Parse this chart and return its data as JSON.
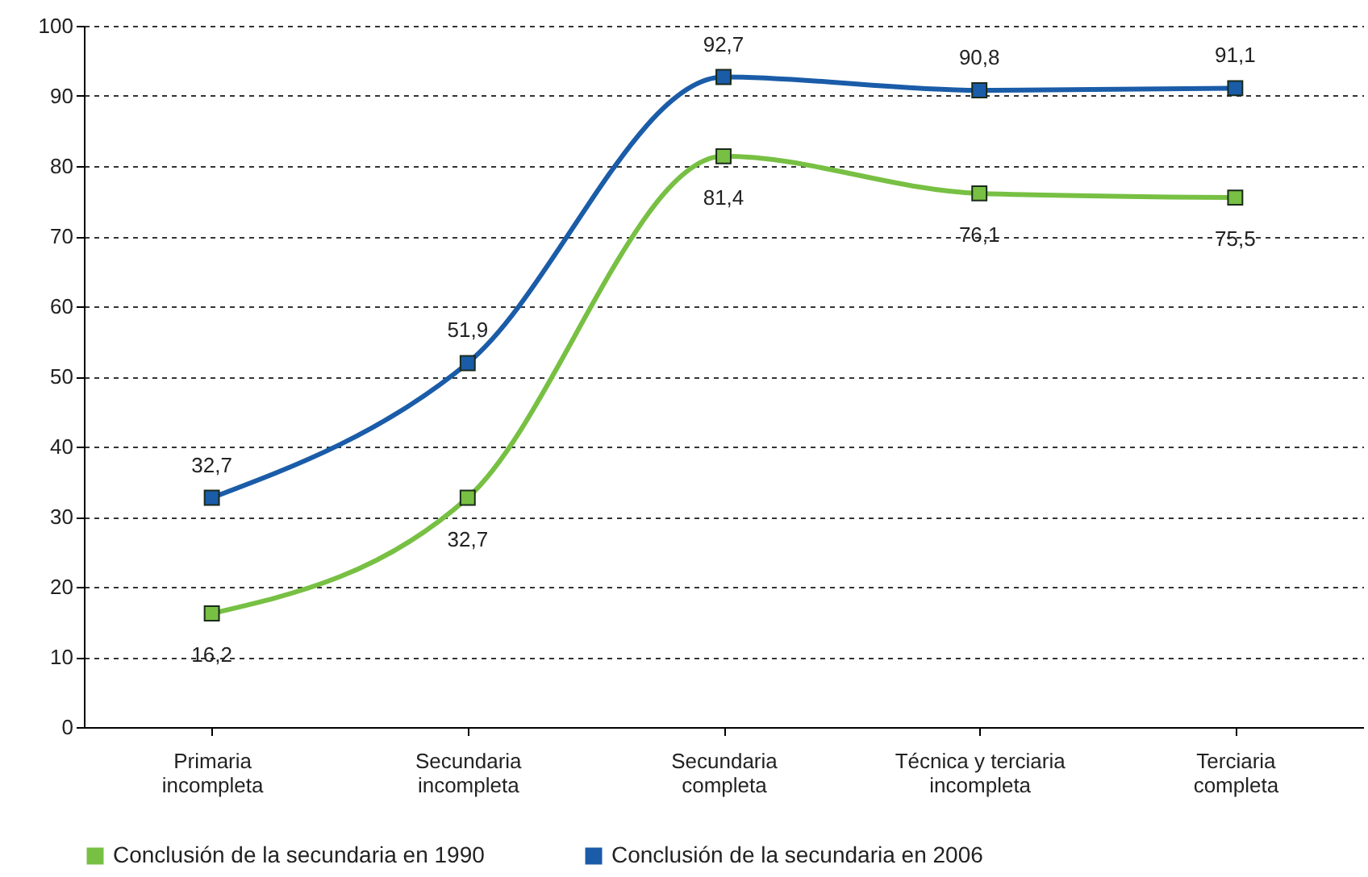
{
  "chart_data": {
    "type": "line",
    "categories": [
      "Primaria incompleta",
      "Secundaria incompleta",
      "Secundaria completa",
      "Técnica y terciaria incompleta",
      "Terciaria completa"
    ],
    "series": [
      {
        "name": "Conclusión de la secundaria en 1990",
        "color": "#77c043",
        "values": [
          16.2,
          32.7,
          81.4,
          76.1,
          75.5
        ],
        "value_labels": [
          "16,2",
          "32,7",
          "81,4",
          "76,1",
          "75,5"
        ]
      },
      {
        "name": "Conclusión de la secundaria en 2006",
        "color": "#1a5ca8",
        "values": [
          32.7,
          51.9,
          92.7,
          90.8,
          91.1
        ],
        "value_labels": [
          "32,7",
          "51,9",
          "92,7",
          "90,8",
          "91,1"
        ]
      }
    ],
    "ylim": [
      0,
      100
    ],
    "yticks": [
      0,
      10,
      20,
      30,
      40,
      50,
      60,
      70,
      80,
      90,
      100
    ],
    "grid": "y",
    "legend": "bottom",
    "marker": "square",
    "line_style": "solid"
  }
}
